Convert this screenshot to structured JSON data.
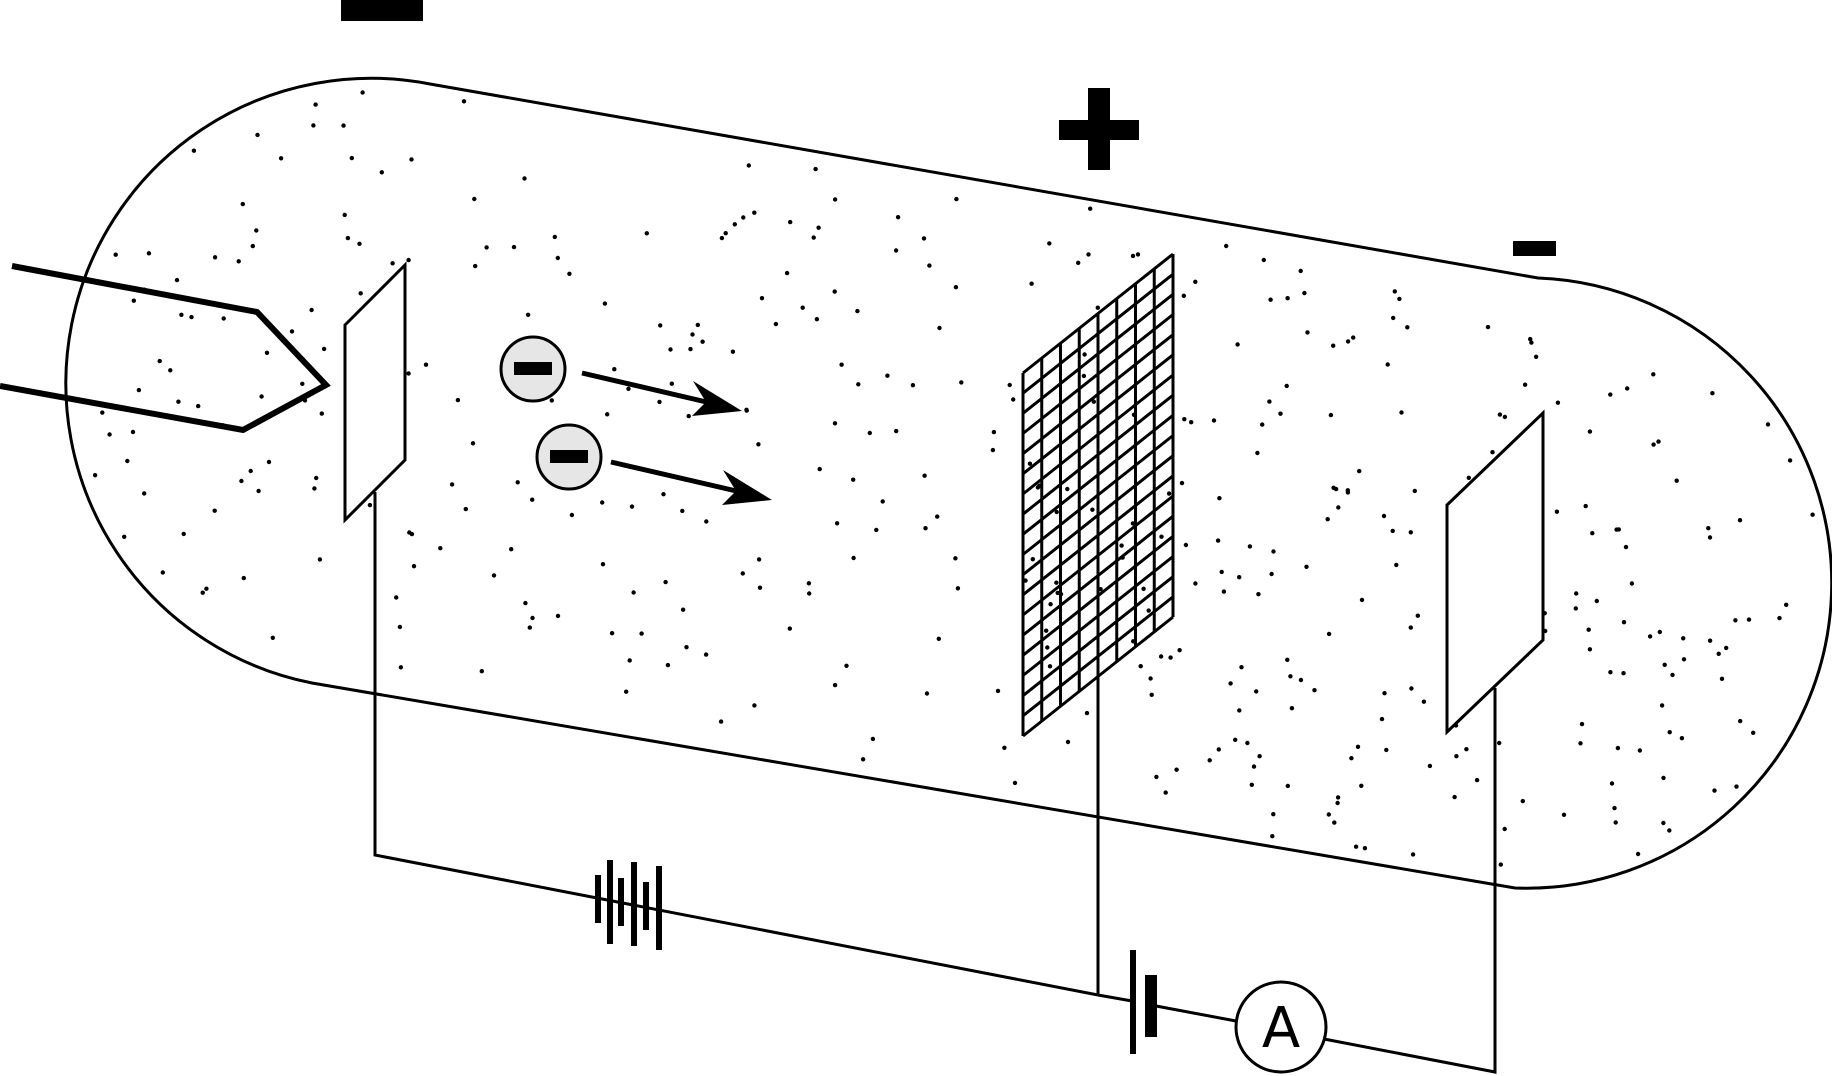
{
  "ammeter": {
    "label": "A"
  },
  "colors": {
    "line": "#000000",
    "background": "#ffffff",
    "electron_fill": "#e6e6e6"
  },
  "icons": {
    "cathode_sign": "minus-sign-icon",
    "grid_sign": "plus-sign-icon",
    "collector_sign": "minus-sign-icon",
    "electron_charge": "minus-sign-icon"
  }
}
